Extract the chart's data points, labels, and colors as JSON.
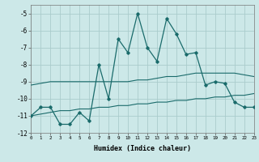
{
  "xlabel": "Humidex (Indice chaleur)",
  "ylabel": "",
  "background_color": "#cce8e8",
  "grid_color": "#aacccc",
  "line_color": "#1a6b6b",
  "x_humidex": [
    0,
    1,
    2,
    3,
    4,
    5,
    6,
    7,
    8,
    9,
    10,
    11,
    12,
    13,
    14,
    15,
    16,
    17,
    18,
    19,
    20,
    21,
    22,
    23
  ],
  "y_main": [
    -11.0,
    -10.5,
    -10.5,
    -11.5,
    -11.5,
    -10.8,
    -11.3,
    -8.0,
    -10.0,
    -6.5,
    -7.3,
    -5.0,
    -7.0,
    -7.8,
    -5.3,
    -6.2,
    -7.4,
    -7.3,
    -9.2,
    -9.0,
    -9.1,
    -10.2,
    -10.5,
    -10.5
  ],
  "y_upper": [
    -9.2,
    -9.1,
    -9.0,
    -9.0,
    -9.0,
    -9.0,
    -9.0,
    -9.0,
    -9.0,
    -9.0,
    -9.0,
    -8.9,
    -8.9,
    -8.8,
    -8.7,
    -8.7,
    -8.6,
    -8.5,
    -8.5,
    -8.5,
    -8.5,
    -8.5,
    -8.6,
    -8.7
  ],
  "y_lower": [
    -11.0,
    -10.9,
    -10.8,
    -10.7,
    -10.7,
    -10.6,
    -10.6,
    -10.5,
    -10.5,
    -10.4,
    -10.4,
    -10.3,
    -10.3,
    -10.2,
    -10.2,
    -10.1,
    -10.1,
    -10.0,
    -10.0,
    -9.9,
    -9.9,
    -9.8,
    -9.8,
    -9.7
  ],
  "xlim": [
    0,
    23
  ],
  "ylim": [
    -12.0,
    -4.5
  ],
  "yticks": [
    -12,
    -11,
    -10,
    -9,
    -8,
    -7,
    -6,
    -5
  ],
  "xticks": [
    0,
    1,
    2,
    3,
    4,
    5,
    6,
    7,
    8,
    9,
    10,
    11,
    12,
    13,
    14,
    15,
    16,
    17,
    18,
    19,
    20,
    21,
    22,
    23
  ],
  "figsize": [
    3.2,
    2.0
  ],
  "dpi": 100
}
